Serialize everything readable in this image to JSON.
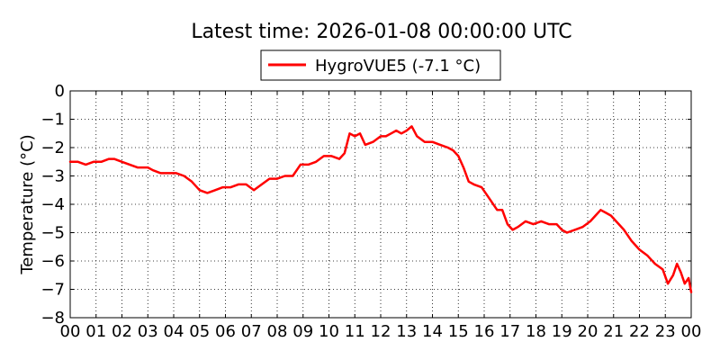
{
  "chart_data": {
    "type": "line",
    "title": "Latest time: 2026-01-08 00:00:00 UTC",
    "xlabel": "",
    "ylabel": "Temperature (°C)",
    "xlim": [
      0,
      24
    ],
    "ylim": [
      -8,
      0
    ],
    "grid": true,
    "legend_position": "top-center",
    "x_ticks": [
      {
        "value": 0,
        "label": "00"
      },
      {
        "value": 1,
        "label": "01"
      },
      {
        "value": 2,
        "label": "02"
      },
      {
        "value": 3,
        "label": "03"
      },
      {
        "value": 4,
        "label": "04"
      },
      {
        "value": 5,
        "label": "05"
      },
      {
        "value": 6,
        "label": "06"
      },
      {
        "value": 7,
        "label": "07"
      },
      {
        "value": 8,
        "label": "08"
      },
      {
        "value": 9,
        "label": "09"
      },
      {
        "value": 10,
        "label": "10"
      },
      {
        "value": 11,
        "label": "11"
      },
      {
        "value": 12,
        "label": "12"
      },
      {
        "value": 13,
        "label": "13"
      },
      {
        "value": 14,
        "label": "14"
      },
      {
        "value": 15,
        "label": "15"
      },
      {
        "value": 16,
        "label": "16"
      },
      {
        "value": 17,
        "label": "17"
      },
      {
        "value": 18,
        "label": "18"
      },
      {
        "value": 19,
        "label": "19"
      },
      {
        "value": 20,
        "label": "20"
      },
      {
        "value": 21,
        "label": "21"
      },
      {
        "value": 22,
        "label": "22"
      },
      {
        "value": 23,
        "label": "23"
      },
      {
        "value": 24,
        "label": "00"
      }
    ],
    "y_ticks": [
      {
        "value": 0,
        "label": "0"
      },
      {
        "value": -1,
        "label": "−1"
      },
      {
        "value": -2,
        "label": "−2"
      },
      {
        "value": -3,
        "label": "−3"
      },
      {
        "value": -4,
        "label": "−4"
      },
      {
        "value": -5,
        "label": "−5"
      },
      {
        "value": -6,
        "label": "−6"
      },
      {
        "value": -7,
        "label": "−7"
      },
      {
        "value": -8,
        "label": "−8"
      }
    ],
    "series": [
      {
        "name": "HygroVUE5 (-7.1 °C)",
        "color": "#ff0000",
        "x": [
          0,
          0.3,
          0.6,
          0.9,
          1.2,
          1.5,
          1.7,
          2.0,
          2.3,
          2.6,
          3.0,
          3.2,
          3.5,
          3.8,
          4.1,
          4.4,
          4.7,
          5.0,
          5.3,
          5.6,
          5.9,
          6.2,
          6.5,
          6.8,
          7.1,
          7.4,
          7.7,
          8.0,
          8.3,
          8.6,
          8.9,
          9.2,
          9.5,
          9.8,
          10.1,
          10.4,
          10.6,
          10.8,
          11.0,
          11.2,
          11.4,
          11.7,
          12.0,
          12.2,
          12.4,
          12.6,
          12.8,
          13.0,
          13.2,
          13.4,
          13.7,
          14.0,
          14.3,
          14.6,
          14.8,
          15.0,
          15.2,
          15.4,
          15.6,
          15.9,
          16.2,
          16.5,
          16.7,
          16.9,
          17.1,
          17.3,
          17.6,
          17.9,
          18.2,
          18.5,
          18.8,
          19.0,
          19.2,
          19.5,
          19.8,
          20.1,
          20.3,
          20.5,
          20.7,
          20.9,
          21.1,
          21.4,
          21.7,
          22.0,
          22.3,
          22.6,
          22.9,
          23.1,
          23.3,
          23.45,
          23.6,
          23.75,
          23.9,
          24.0
        ],
        "y": [
          -2.5,
          -2.5,
          -2.6,
          -2.5,
          -2.5,
          -2.4,
          -2.4,
          -2.5,
          -2.6,
          -2.7,
          -2.7,
          -2.8,
          -2.9,
          -2.9,
          -2.9,
          -3.0,
          -3.2,
          -3.5,
          -3.6,
          -3.5,
          -3.4,
          -3.4,
          -3.3,
          -3.3,
          -3.5,
          -3.3,
          -3.1,
          -3.1,
          -3.0,
          -3.0,
          -2.6,
          -2.6,
          -2.5,
          -2.3,
          -2.3,
          -2.4,
          -2.2,
          -1.5,
          -1.6,
          -1.5,
          -1.9,
          -1.8,
          -1.6,
          -1.6,
          -1.5,
          -1.4,
          -1.5,
          -1.4,
          -1.25,
          -1.6,
          -1.8,
          -1.8,
          -1.9,
          -2.0,
          -2.1,
          -2.3,
          -2.7,
          -3.2,
          -3.3,
          -3.4,
          -3.8,
          -4.2,
          -4.2,
          -4.7,
          -4.9,
          -4.8,
          -4.6,
          -4.7,
          -4.6,
          -4.7,
          -4.7,
          -4.9,
          -5.0,
          -4.9,
          -4.8,
          -4.6,
          -4.4,
          -4.2,
          -4.3,
          -4.4,
          -4.6,
          -4.9,
          -5.3,
          -5.6,
          -5.8,
          -6.1,
          -6.3,
          -6.8,
          -6.5,
          -6.1,
          -6.4,
          -6.8,
          -6.6,
          -7.1
        ]
      }
    ]
  }
}
